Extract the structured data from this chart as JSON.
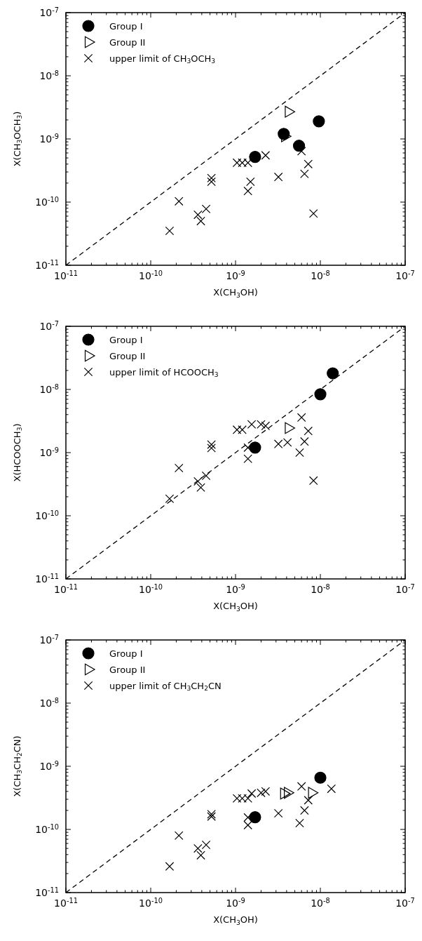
{
  "chart_data": [
    {
      "type": "scatter",
      "xlabel": "X(CH$_{3}$OH)",
      "ylabel": "X(CH$_{3}$OCH$_{3}$)",
      "log": "xy",
      "legend": "top left",
      "xlim": [
        1e-11,
        1e-07
      ],
      "ylim": [
        1e-11,
        1e-07
      ],
      "xticks": [
        {
          "value": 1e-11,
          "label": "10$^{-11}$"
        },
        {
          "value": 1e-10,
          "label": "10$^{-10}$"
        },
        {
          "value": 1e-09,
          "label": "10$^{-9}$"
        },
        {
          "value": 1e-08,
          "label": "10$^{-8}$"
        },
        {
          "value": 1e-07,
          "label": "10$^{-7}$"
        }
      ],
      "yticks": [
        {
          "value": 1e-11,
          "label": "10$^{-11}$"
        },
        {
          "value": 1e-10,
          "label": "10$^{-10}$"
        },
        {
          "value": 1e-09,
          "label": "10$^{-9}$"
        },
        {
          "value": 1e-08,
          "label": "10$^{-8}$"
        },
        {
          "value": 1e-07,
          "label": "10$^{-7}$"
        }
      ],
      "series": [
        {
          "type": "line",
          "line_style": "dashed",
          "marker": "none",
          "color": "#000000",
          "x": [
            1e-11,
            1e-07
          ],
          "values": [
            1e-11,
            1e-07
          ]
        },
        {
          "name": "Group I",
          "marker": "circle",
          "color": "#000000",
          "x": [
            1.7e-09,
            3.7e-09,
            5.6e-09,
            9.6e-09
          ],
          "values": [
            5.2e-10,
            1.2e-09,
            7.8e-10,
            1.9e-09
          ]
        },
        {
          "name": "Group II",
          "marker": "triangle",
          "color": "#000000",
          "x": [
            4.2e-09,
            3.8e-09
          ],
          "values": [
            2.7e-09,
            1.1e-09
          ]
        },
        {
          "name": "upper limit of CH$_{3}$OCH$_{3}$",
          "marker": "cross",
          "color": "#000000",
          "x": [
            2.15e-10,
            1.67e-10,
            3.6e-10,
            3.9e-10,
            4.5e-10,
            5.2e-10,
            5.2e-10,
            1.04e-09,
            1.2e-09,
            1.4e-09,
            1.5e-09,
            1.4e-09,
            2.26e-09,
            3.2e-09,
            6e-09,
            7.2e-09,
            6.5e-09,
            8.3e-09
          ],
          "values": [
            1.03e-10,
            3.5e-11,
            6.3e-11,
            5e-11,
            7.8e-11,
            2.4e-10,
            2.1e-10,
            4.2e-10,
            4.2e-10,
            4.2e-10,
            2.1e-10,
            1.5e-10,
            5.5e-10,
            2.5e-10,
            6.4e-10,
            4e-10,
            2.8e-10,
            6.6e-11
          ]
        }
      ]
    },
    {
      "type": "scatter",
      "xlabel": "X(CH$_{3}$OH)",
      "ylabel": "X(HCOOCH$_{3}$)",
      "log": "xy",
      "legend": "top left",
      "xlim": [
        1e-11,
        1e-07
      ],
      "ylim": [
        1e-11,
        1e-07
      ],
      "xticks": [
        {
          "value": 1e-11,
          "label": "10$^{-11}$"
        },
        {
          "value": 1e-10,
          "label": "10$^{-10}$"
        },
        {
          "value": 1e-09,
          "label": "10$^{-9}$"
        },
        {
          "value": 1e-08,
          "label": "10$^{-8}$"
        },
        {
          "value": 1e-07,
          "label": "10$^{-7}$"
        }
      ],
      "yticks": [
        {
          "value": 1e-11,
          "label": "10$^{-11}$"
        },
        {
          "value": 1e-10,
          "label": "10$^{-10}$"
        },
        {
          "value": 1e-09,
          "label": "10$^{-9}$"
        },
        {
          "value": 1e-08,
          "label": "10$^{-8}$"
        },
        {
          "value": 1e-07,
          "label": "10$^{-7}$"
        }
      ],
      "series": [
        {
          "type": "line",
          "line_style": "dashed",
          "marker": "none",
          "color": "#000000",
          "x": [
            1e-11,
            1e-07
          ],
          "values": [
            1e-11,
            1e-07
          ]
        },
        {
          "name": "Group I",
          "marker": "circle",
          "color": "#000000",
          "x": [
            1.7e-09,
            1e-08,
            1.4e-08
          ],
          "values": [
            1.2e-09,
            8.4e-09,
            1.8e-08
          ]
        },
        {
          "name": "Group II",
          "marker": "triangle",
          "color": "#000000",
          "x": [
            4.2e-09
          ],
          "values": [
            2.45e-09
          ]
        },
        {
          "name": "upper limit of HCOOCH$_{3}$",
          "marker": "cross",
          "color": "#000000",
          "x": [
            1.67e-10,
            2.15e-10,
            3.6e-10,
            3.9e-10,
            4.5e-10,
            5.2e-10,
            5.2e-10,
            1.04e-09,
            1.2e-09,
            1.55e-09,
            2e-09,
            2.26e-09,
            1.4e-09,
            1.4e-09,
            3.2e-09,
            4.1e-09,
            6e-09,
            7.2e-09,
            6.5e-09,
            5.7e-09,
            8.3e-09
          ],
          "values": [
            1.86e-10,
            5.7e-10,
            3.5e-10,
            2.8e-10,
            4.3e-10,
            1.34e-09,
            1.18e-09,
            2.3e-09,
            2.3e-09,
            2.8e-09,
            2.8e-09,
            2.65e-09,
            1.2e-09,
            8e-10,
            1.37e-09,
            1.45e-09,
            3.6e-09,
            2.2e-09,
            1.5e-09,
            1e-09,
            3.6e-10
          ]
        }
      ]
    },
    {
      "type": "scatter",
      "xlabel": "X(CH$_{3}$OH)",
      "ylabel": "X(CH$_{3}$CH$_{2}$CN)",
      "log": "xy",
      "legend": "top left",
      "xlim": [
        1e-11,
        1e-07
      ],
      "ylim": [
        1e-11,
        1e-07
      ],
      "xticks": [
        {
          "value": 1e-11,
          "label": "10$^{-11}$"
        },
        {
          "value": 1e-10,
          "label": "10$^{-10}$"
        },
        {
          "value": 1e-09,
          "label": "10$^{-9}$"
        },
        {
          "value": 1e-08,
          "label": "10$^{-8}$"
        },
        {
          "value": 1e-07,
          "label": "10$^{-7}$"
        }
      ],
      "yticks": [
        {
          "value": 1e-11,
          "label": "10$^{-11}$"
        },
        {
          "value": 1e-10,
          "label": "10$^{-10}$"
        },
        {
          "value": 1e-09,
          "label": "10$^{-9}$"
        },
        {
          "value": 1e-08,
          "label": "10$^{-8}$"
        },
        {
          "value": 1e-07,
          "label": "10$^{-7}$"
        }
      ],
      "series": [
        {
          "type": "line",
          "line_style": "dashed",
          "marker": "none",
          "color": "#000000",
          "x": [
            1e-11,
            1e-07
          ],
          "values": [
            1e-11,
            1e-07
          ]
        },
        {
          "name": "Group I",
          "marker": "circle",
          "color": "#000000",
          "x": [
            1.7e-09,
            1e-08
          ],
          "values": [
            1.56e-10,
            6.6e-10
          ]
        },
        {
          "name": "Group II",
          "marker": "triangle",
          "color": "#000000",
          "x": [
            3.7e-09,
            4.1e-09,
            7.9e-09
          ],
          "values": [
            3.7e-10,
            3.8e-10,
            3.8e-10
          ]
        },
        {
          "name": "upper limit of CH$_{3}$CH$_{2}$CN",
          "marker": "cross",
          "color": "#000000",
          "x": [
            1.67e-10,
            2.15e-10,
            3.6e-10,
            3.9e-10,
            4.5e-10,
            5.2e-10,
            5.2e-10,
            1.04e-09,
            1.2e-09,
            1.4e-09,
            1.55e-09,
            2e-09,
            2.26e-09,
            1.4e-09,
            1.4e-09,
            3.2e-09,
            6e-09,
            7.2e-09,
            6.5e-09,
            5.7e-09,
            1.35e-08
          ],
          "values": [
            2.6e-11,
            8e-11,
            5e-11,
            3.9e-11,
            5.7e-11,
            1.74e-10,
            1.6e-10,
            3.1e-10,
            3.1e-10,
            3.1e-10,
            3.7e-10,
            3.8e-10,
            4e-10,
            1.55e-10,
            1.17e-10,
            1.8e-10,
            4.8e-10,
            2.9e-10,
            2e-10,
            1.26e-10,
            4.4e-10
          ]
        }
      ]
    }
  ]
}
